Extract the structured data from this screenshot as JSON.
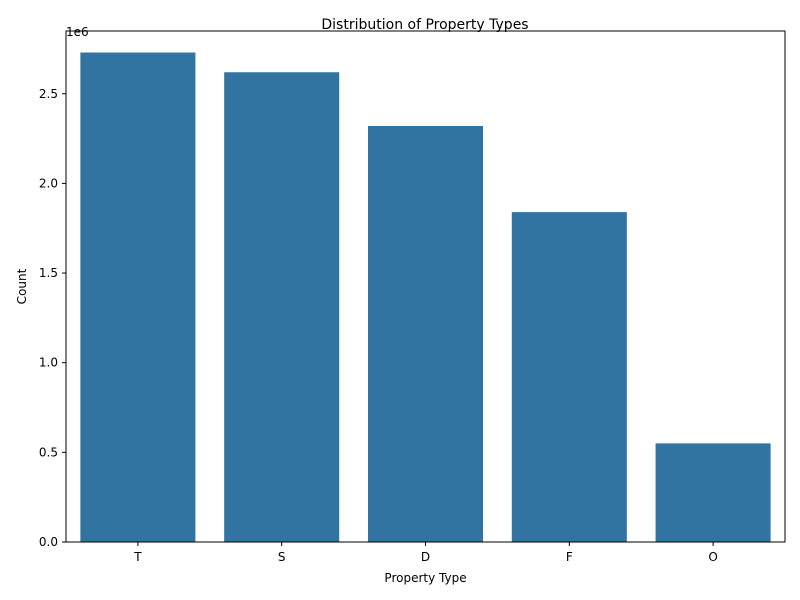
{
  "chart_data": {
    "type": "bar",
    "title": "Distribution of Property Types",
    "xlabel": "Property Type",
    "ylabel": "Count",
    "categories": [
      "T",
      "S",
      "D",
      "F",
      "O"
    ],
    "values": [
      2730000,
      2620000,
      2320000,
      1840000,
      550000
    ],
    "ylim": [
      0,
      2850000
    ],
    "yticks": [
      0.0,
      0.5,
      1.0,
      1.5,
      2.0,
      2.5
    ],
    "ytick_labels": [
      "0.0",
      "0.5",
      "1.0",
      "1.5",
      "2.0",
      "2.5"
    ],
    "y_scale_multiplier": 1000000,
    "y_offset_label": "1e6",
    "bar_color": "#3274a1",
    "grid": false
  }
}
